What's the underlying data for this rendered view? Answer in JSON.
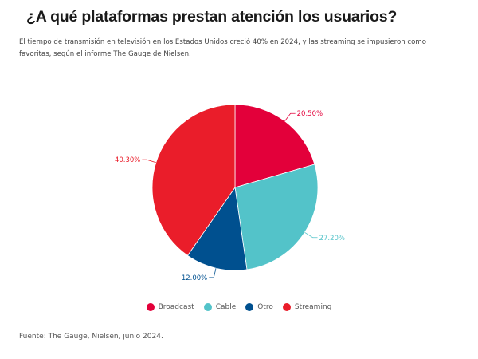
{
  "title": "¿A qué plataformas prestan atención los usuarios?",
  "subtitle": "El tiempo de transmisión en televisión en los Estados Unidos creció 40% en 2024, y las streaming se impusieron como favoritas, según el informe The Gauge de Nielsen.",
  "source": "Fuente: The Gauge, Nielsen, junio 2024.",
  "chart_data": {
    "type": "pie",
    "start": "top, clockwise",
    "legend_position": "bottom",
    "slices": [
      {
        "name": "Broadcast",
        "value": 20.5,
        "label": "20.50%",
        "color": "#e3003a"
      },
      {
        "name": "Cable",
        "value": 27.2,
        "label": "27.20%",
        "color": "#53c3c9"
      },
      {
        "name": "Otro",
        "value": 12.0,
        "label": "12.00%",
        "color": "#00508f"
      },
      {
        "name": "Streaming",
        "value": 40.3,
        "label": "40.30%",
        "color": "#ea1d2a"
      }
    ]
  }
}
